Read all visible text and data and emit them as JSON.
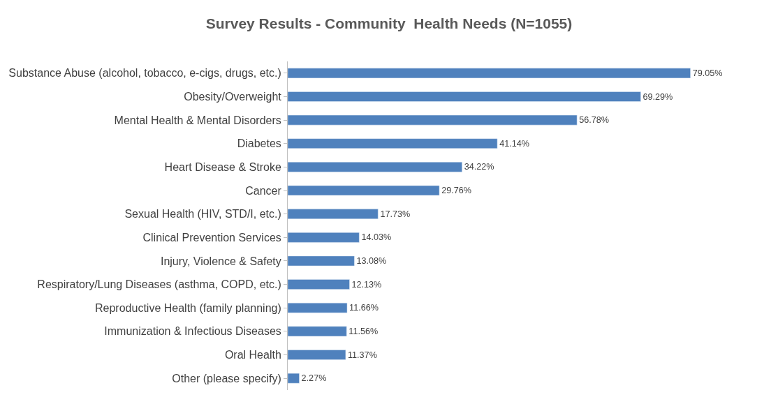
{
  "chart_data": {
    "type": "bar",
    "orientation": "horizontal",
    "title": "Survey Results - Community  Health Needs (N=1055)",
    "categories": [
      "Substance Abuse (alcohol, tobacco, e-cigs, drugs, etc.)",
      "Obesity/Overweight",
      "Mental Health & Mental Disorders",
      "Diabetes",
      "Heart Disease & Stroke",
      "Cancer",
      "Sexual Health (HIV, STD/I, etc.)",
      "Clinical Prevention Services",
      "Injury, Violence & Safety",
      "Respiratory/Lung Diseases (asthma, COPD, etc.)",
      "Reproductive Health (family planning)",
      "Immunization & Infectious Diseases",
      "Oral Health",
      "Other (please specify)"
    ],
    "values": [
      79.05,
      69.29,
      56.78,
      41.14,
      34.22,
      29.76,
      17.73,
      14.03,
      13.08,
      12.13,
      11.66,
      11.56,
      11.37,
      2.27
    ],
    "value_labels": [
      "79.05%",
      "69.29%",
      "56.78%",
      "41.14%",
      "34.22%",
      "29.76%",
      "17.73%",
      "14.03%",
      "13.08%",
      "12.13%",
      "11.66%",
      "11.56%",
      "11.37%",
      "2.27%"
    ],
    "color": "#4f81bd",
    "tick_labels": "y"
  }
}
